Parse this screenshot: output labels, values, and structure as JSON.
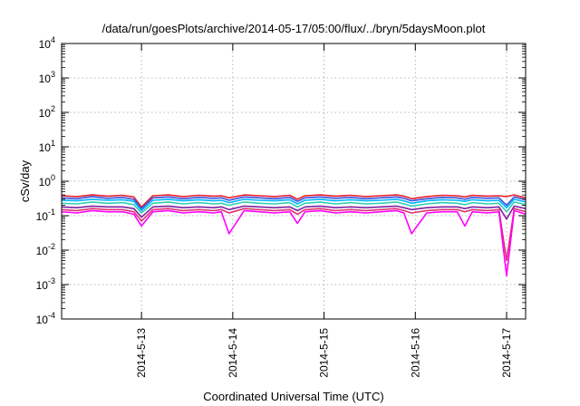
{
  "chart_data": {
    "type": "line",
    "title": "/data/run/goesPlots/archive/2014-05-17/05:00/flux/../bryn/5daysMoon.plot",
    "xlabel": "Coordinated Universal Time (UTC)",
    "ylabel": "cSv/day",
    "yscale": "log",
    "ylim": [
      0.0001,
      10000
    ],
    "xlim": [
      "2014-05-12 03:00",
      "2014-05-17 05:00"
    ],
    "grid": true,
    "legend": "none",
    "y_ticks": [
      {
        "base": "10",
        "exp": "4",
        "value": 10000
      },
      {
        "base": "10",
        "exp": "3",
        "value": 1000
      },
      {
        "base": "10",
        "exp": "2",
        "value": 100
      },
      {
        "base": "10",
        "exp": "1",
        "value": 10
      },
      {
        "base": "10",
        "exp": "0",
        "value": 1
      },
      {
        "base": "10",
        "exp": "-1",
        "value": 0.1
      },
      {
        "base": "10",
        "exp": "-2",
        "value": 0.01
      },
      {
        "base": "10",
        "exp": "-3",
        "value": 0.001
      },
      {
        "base": "10",
        "exp": "-4",
        "value": 0.0001
      }
    ],
    "x_ticks": [
      "2014-5-13",
      "2014-5-14",
      "2014-5-15",
      "2014-5-16",
      "2014-5-17"
    ],
    "x": [
      "2014-05-12 03:00",
      "2014-05-12 07:00",
      "2014-05-12 11:00",
      "2014-05-12 15:00",
      "2014-05-12 19:00",
      "2014-05-12 22:00",
      "2014-05-13 00:00",
      "2014-05-13 03:00",
      "2014-05-13 07:00",
      "2014-05-13 11:00",
      "2014-05-13 15:00",
      "2014-05-13 19:00",
      "2014-05-13 21:00",
      "2014-05-13 23:00",
      "2014-05-14 03:00",
      "2014-05-14 07:00",
      "2014-05-14 11:00",
      "2014-05-14 15:00",
      "2014-05-14 17:00",
      "2014-05-14 19:00",
      "2014-05-14 23:00",
      "2014-05-15 03:00",
      "2014-05-15 07:00",
      "2014-05-15 11:00",
      "2014-05-15 15:00",
      "2014-05-15 19:00",
      "2014-05-15 21:00",
      "2014-05-15 23:00",
      "2014-05-16 03:00",
      "2014-05-16 07:00",
      "2014-05-16 11:00",
      "2014-05-16 13:00",
      "2014-05-16 15:00",
      "2014-05-16 19:00",
      "2014-05-16 22:00",
      "2014-05-17 00:00",
      "2014-05-17 02:00",
      "2014-05-17 05:00"
    ],
    "series": [
      {
        "color": "#e8202a",
        "values": [
          0.38,
          0.36,
          0.4,
          0.37,
          0.39,
          0.35,
          0.18,
          0.38,
          0.4,
          0.36,
          0.39,
          0.37,
          0.38,
          0.33,
          0.4,
          0.38,
          0.36,
          0.39,
          0.3,
          0.38,
          0.4,
          0.37,
          0.39,
          0.36,
          0.38,
          0.4,
          0.37,
          0.31,
          0.36,
          0.39,
          0.38,
          0.35,
          0.39,
          0.37,
          0.38,
          0.36,
          0.4,
          0.33
        ]
      },
      {
        "color": "#3a50e0",
        "values": [
          0.33,
          0.31,
          0.36,
          0.32,
          0.34,
          0.3,
          0.16,
          0.33,
          0.35,
          0.31,
          0.34,
          0.32,
          0.33,
          0.28,
          0.35,
          0.33,
          0.31,
          0.34,
          0.26,
          0.33,
          0.35,
          0.32,
          0.34,
          0.31,
          0.33,
          0.35,
          0.32,
          0.27,
          0.31,
          0.34,
          0.33,
          0.3,
          0.34,
          0.32,
          0.33,
          0.2,
          0.35,
          0.29
        ]
      },
      {
        "color": "#00b4ff",
        "values": [
          0.28,
          0.27,
          0.3,
          0.28,
          0.29,
          0.26,
          0.14,
          0.28,
          0.3,
          0.27,
          0.29,
          0.27,
          0.28,
          0.24,
          0.3,
          0.28,
          0.27,
          0.29,
          0.22,
          0.28,
          0.3,
          0.27,
          0.29,
          0.27,
          0.28,
          0.3,
          0.27,
          0.23,
          0.27,
          0.29,
          0.28,
          0.26,
          0.29,
          0.27,
          0.28,
          0.17,
          0.3,
          0.25
        ]
      },
      {
        "color": "#30d0b0",
        "values": [
          0.23,
          0.22,
          0.25,
          0.23,
          0.24,
          0.21,
          0.12,
          0.23,
          0.25,
          0.22,
          0.24,
          0.22,
          0.23,
          0.2,
          0.25,
          0.23,
          0.22,
          0.24,
          0.18,
          0.23,
          0.25,
          0.22,
          0.24,
          0.22,
          0.23,
          0.25,
          0.22,
          0.19,
          0.22,
          0.24,
          0.23,
          0.21,
          0.24,
          0.22,
          0.23,
          0.13,
          0.25,
          0.21
        ]
      },
      {
        "color": "#8020a0",
        "values": [
          0.18,
          0.17,
          0.19,
          0.18,
          0.18,
          0.16,
          0.09,
          0.18,
          0.19,
          0.17,
          0.18,
          0.17,
          0.18,
          0.15,
          0.19,
          0.18,
          0.17,
          0.18,
          0.14,
          0.18,
          0.19,
          0.17,
          0.18,
          0.17,
          0.18,
          0.19,
          0.17,
          0.15,
          0.17,
          0.18,
          0.18,
          0.16,
          0.18,
          0.17,
          0.18,
          0.08,
          0.19,
          0.16
        ]
      },
      {
        "color": "#e03070",
        "values": [
          0.15,
          0.14,
          0.16,
          0.15,
          0.15,
          0.13,
          0.07,
          0.15,
          0.16,
          0.14,
          0.15,
          0.14,
          0.15,
          0.12,
          0.16,
          0.15,
          0.14,
          0.15,
          0.11,
          0.15,
          0.16,
          0.14,
          0.15,
          0.14,
          0.15,
          0.16,
          0.14,
          0.12,
          0.14,
          0.15,
          0.15,
          0.13,
          0.15,
          0.14,
          0.15,
          0.005,
          0.16,
          0.13
        ]
      },
      {
        "color": "#ff00ff",
        "values": [
          0.13,
          0.12,
          0.14,
          0.13,
          0.13,
          0.11,
          0.05,
          0.13,
          0.14,
          0.12,
          0.13,
          0.12,
          0.13,
          0.03,
          0.14,
          0.13,
          0.12,
          0.13,
          0.06,
          0.13,
          0.14,
          0.12,
          0.13,
          0.12,
          0.13,
          0.14,
          0.12,
          0.03,
          0.12,
          0.13,
          0.13,
          0.05,
          0.13,
          0.12,
          0.13,
          0.0018,
          0.14,
          0.11
        ]
      }
    ]
  }
}
